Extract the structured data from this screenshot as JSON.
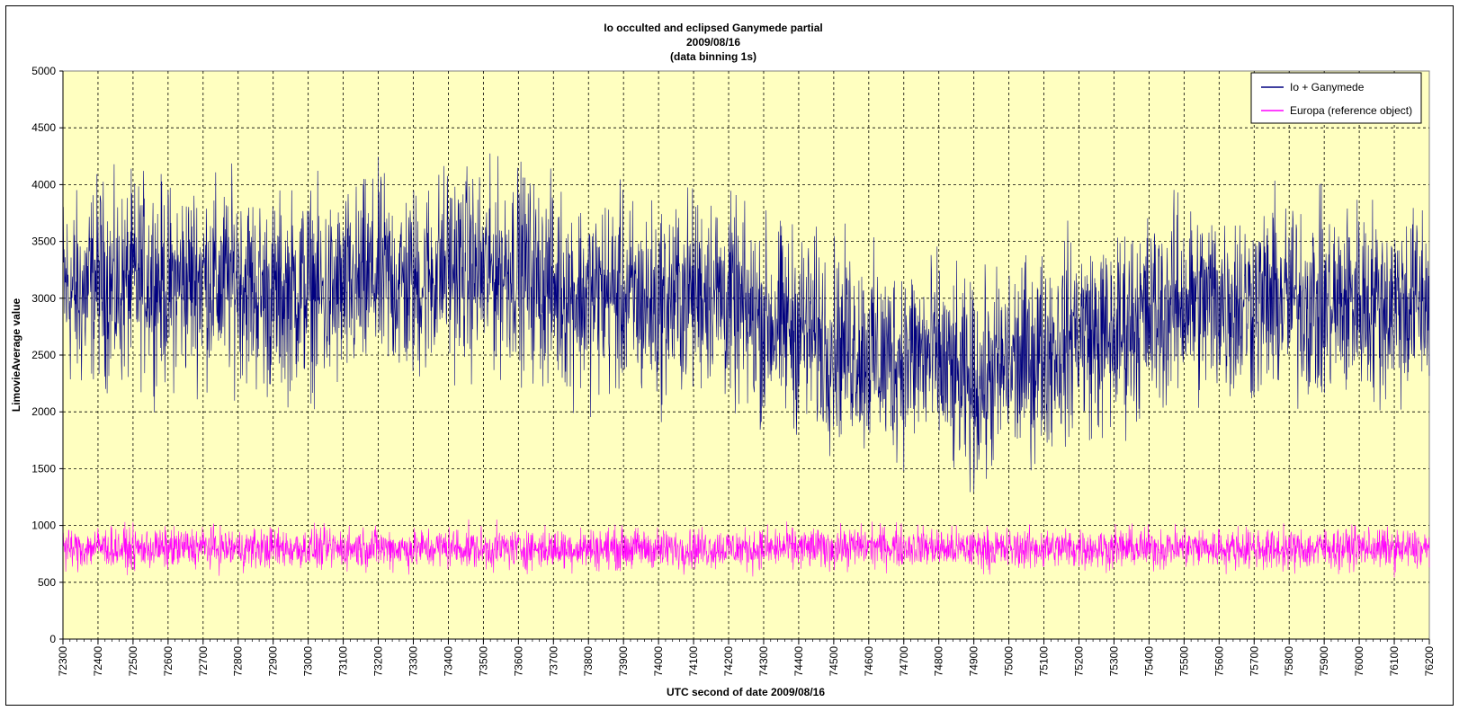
{
  "chart_data": {
    "type": "line",
    "title_lines": [
      "Io occulted and eclipsed Ganymede partial",
      "2009/08/16",
      "(data binning 1s)"
    ],
    "xlabel": "UTC second of date 2009/08/16",
    "ylabel": "LimovieAverage value",
    "xlim": [
      72300,
      76200
    ],
    "ylim": [
      0,
      5000
    ],
    "x_ticks": [
      72300,
      72400,
      72500,
      72600,
      72700,
      72800,
      72900,
      73000,
      73100,
      73200,
      73300,
      73400,
      73500,
      73600,
      73700,
      73800,
      73900,
      74000,
      74100,
      74200,
      74300,
      74400,
      74500,
      74600,
      74700,
      74800,
      74900,
      75000,
      75100,
      75200,
      75300,
      75400,
      75500,
      75600,
      75700,
      75800,
      75900,
      76000,
      76100,
      76200
    ],
    "y_ticks": [
      0,
      500,
      1000,
      1500,
      2000,
      2500,
      3000,
      3500,
      4000,
      4500,
      5000
    ],
    "grid": true,
    "plot_background": "#ffffc0",
    "legend_position": "top-right",
    "series": [
      {
        "name": "Io + Ganymede",
        "color": "#000080",
        "x": [
          72300,
          72350,
          72400,
          72450,
          72500,
          72550,
          72600,
          72650,
          72700,
          72750,
          72800,
          72850,
          72900,
          72950,
          73000,
          73050,
          73100,
          73150,
          73200,
          73250,
          73300,
          73350,
          73400,
          73450,
          73500,
          73550,
          73600,
          73650,
          73700,
          73750,
          73800,
          73850,
          73900,
          73950,
          74000,
          74050,
          74100,
          74150,
          74200,
          74250,
          74300,
          74350,
          74400,
          74450,
          74500,
          74550,
          74600,
          74650,
          74700,
          74750,
          74800,
          74850,
          74900,
          74950,
          75000,
          75050,
          75100,
          75150,
          75200,
          75250,
          75300,
          75350,
          75400,
          75450,
          75500,
          75550,
          75600,
          75650,
          75700,
          75750,
          75800,
          75850,
          75900,
          75950,
          76000,
          76050,
          76100,
          76150,
          76200
        ],
        "y": [
          3100,
          3000,
          3200,
          3050,
          3150,
          3200,
          3100,
          3150,
          3200,
          3100,
          3200,
          3050,
          3000,
          3050,
          3100,
          3000,
          3050,
          3100,
          3200,
          3150,
          3100,
          3200,
          3300,
          3250,
          3200,
          3250,
          3300,
          3150,
          3100,
          3050,
          3000,
          3050,
          3000,
          2950,
          2950,
          3000,
          3050,
          3100,
          2950,
          2850,
          2800,
          2750,
          2750,
          2650,
          2600,
          2600,
          2500,
          2450,
          2500,
          2500,
          2450,
          2250,
          2200,
          2300,
          2400,
          2450,
          2550,
          2600,
          2750,
          2650,
          2650,
          2800,
          2850,
          2900,
          3000,
          2950,
          3000,
          2950,
          2950,
          2980,
          2980,
          2980,
          2900,
          2950,
          3000,
          2950,
          2950,
          2950,
          3000
        ]
      },
      {
        "name": "Europa (reference object)",
        "color": "#ff00ff",
        "x": [
          72300,
          72350,
          72400,
          72450,
          72500,
          72550,
          72600,
          72650,
          72700,
          72750,
          72800,
          72850,
          72900,
          72950,
          73000,
          73050,
          73100,
          73150,
          73200,
          73250,
          73300,
          73350,
          73400,
          73450,
          73500,
          73550,
          73600,
          73650,
          73700,
          73750,
          73800,
          73850,
          73900,
          73950,
          74000,
          74050,
          74100,
          74150,
          74200,
          74250,
          74300,
          74350,
          74400,
          74450,
          74500,
          74550,
          74600,
          74650,
          74700,
          74750,
          74800,
          74850,
          74900,
          74950,
          75000,
          75050,
          75100,
          75150,
          75200,
          75250,
          75300,
          75350,
          75400,
          75450,
          75500,
          75550,
          75600,
          75650,
          75700,
          75750,
          75800,
          75850,
          75900,
          75950,
          76000,
          76050,
          76100,
          76150,
          76200
        ],
        "y": [
          800,
          790,
          820,
          800,
          790,
          800,
          795,
          805,
          810,
          800,
          795,
          800,
          805,
          795,
          800,
          790,
          800,
          805,
          810,
          800,
          790,
          800,
          810,
          800,
          790,
          800,
          795,
          800,
          790,
          800,
          800,
          795,
          800,
          800,
          790,
          795,
          800,
          800,
          800,
          790,
          795,
          800,
          800,
          800,
          800,
          810,
          820,
          815,
          810,
          815,
          800,
          790,
          800,
          795,
          790,
          800,
          800,
          800,
          800,
          800,
          800,
          800,
          800,
          800,
          810,
          805,
          800,
          800,
          800,
          790,
          790,
          790,
          800,
          800,
          810,
          800,
          790,
          790,
          780
        ]
      }
    ]
  }
}
